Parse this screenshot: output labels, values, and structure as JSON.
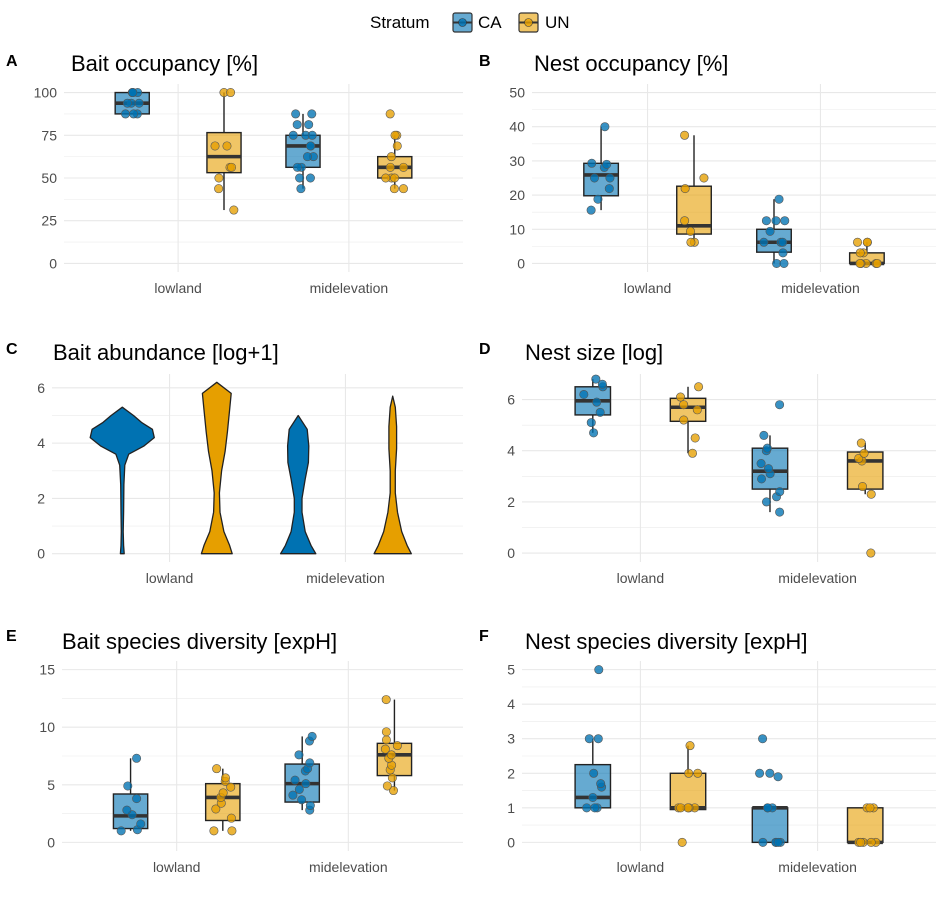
{
  "legend": {
    "title": "Stratum",
    "items": [
      {
        "label": "CA",
        "color": "#0072B2"
      },
      {
        "label": "UN",
        "color": "#E69F00"
      }
    ]
  },
  "chart_data": [
    {
      "panel": "A",
      "type": "box",
      "title": "Bait occupancy [%]",
      "categories": [
        "lowland",
        "midelevation"
      ],
      "ylim": [
        -5,
        105
      ],
      "yticks": [
        0,
        25,
        50,
        75,
        100
      ],
      "series": [
        {
          "name": "CA",
          "boxes": [
            {
              "min": 87.5,
              "q1": 87.5,
              "median": 93.75,
              "q3": 100,
              "max": 100,
              "points": [
                87.5,
                87.5,
                87.5,
                93.75,
                93.75,
                93.75,
                100,
                100,
                100,
                100
              ]
            },
            {
              "min": 43.75,
              "q1": 56.25,
              "median": 68.75,
              "q3": 75,
              "max": 87.5,
              "points": [
                43.75,
                50,
                50,
                56.25,
                56.25,
                62.5,
                62.5,
                68.75,
                68.75,
                75,
                75,
                75,
                81.25,
                81.25,
                87.5,
                87.5
              ]
            }
          ]
        },
        {
          "name": "UN",
          "boxes": [
            {
              "min": 31.25,
              "q1": 53.12,
              "median": 62.5,
              "q3": 76.56,
              "max": 100,
              "points": [
                31.25,
                43.75,
                50,
                56.25,
                56.25,
                68.75,
                68.75,
                100,
                100
              ]
            },
            {
              "min": 43.75,
              "q1": 50,
              "median": 56.25,
              "q3": 62.5,
              "max": 75,
              "points": [
                43.75,
                43.75,
                50,
                50,
                50,
                56.25,
                56.25,
                62.5,
                68.75,
                75,
                75,
                87.5
              ]
            }
          ]
        }
      ]
    },
    {
      "panel": "B",
      "type": "box",
      "title": "Nest occupancy [%]",
      "categories": [
        "lowland",
        "midelevation"
      ],
      "ylim": [
        -2.5,
        52.5
      ],
      "yticks": [
        0,
        10,
        20,
        30,
        40,
        50
      ],
      "series": [
        {
          "name": "CA",
          "boxes": [
            {
              "min": 15.6,
              "q1": 19.8,
              "median": 25.9,
              "q3": 29.3,
              "max": 40,
              "points": [
                15.6,
                18.8,
                21.9,
                25,
                25,
                28.1,
                29,
                29.3,
                40
              ]
            },
            {
              "min": 0,
              "q1": 3.3,
              "median": 6.2,
              "q3": 10,
              "max": 18.8,
              "points": [
                0,
                0,
                3.1,
                6.2,
                6.2,
                6.2,
                9.4,
                12.5,
                12.5,
                12.5,
                18.8
              ]
            }
          ]
        },
        {
          "name": "UN",
          "boxes": [
            {
              "min": 6.2,
              "q1": 8.6,
              "median": 11,
              "q3": 22.6,
              "max": 37.5,
              "points": [
                6.2,
                6.2,
                9.4,
                12.5,
                21.9,
                25,
                37.5
              ]
            },
            {
              "min": 0,
              "q1": 0,
              "median": 0,
              "q3": 3.1,
              "max": 6.2,
              "points": [
                0,
                0,
                0,
                0,
                0,
                3.1,
                3.1,
                6.2,
                6.2,
                6.2
              ]
            }
          ]
        }
      ]
    },
    {
      "panel": "C",
      "type": "violin",
      "title": "Bait abundance [log+1]",
      "categories": [
        "lowland",
        "midelevation"
      ],
      "ylim": [
        -0.3,
        6.5
      ],
      "yticks": [
        0,
        2,
        4,
        6
      ],
      "series": [
        {
          "name": "CA",
          "violins": [
            {
              "profile": [
                [
                  0,
                  0.06
                ],
                [
                  0.3,
                  0.04
                ],
                [
                  0.8,
                  0.03
                ],
                [
                  1.5,
                  0.04
                ],
                [
                  2.5,
                  0.05
                ],
                [
                  3.2,
                  0.08
                ],
                [
                  3.6,
                  0.2
                ],
                [
                  3.9,
                  0.68
                ],
                [
                  4.2,
                  1.0
                ],
                [
                  4.5,
                  0.94
                ],
                [
                  4.75,
                  0.6
                ],
                [
                  5.0,
                  0.35
                ],
                [
                  5.3,
                  0
                ]
              ]
            },
            {
              "profile": [
                [
                  0,
                  0.55
                ],
                [
                  0.3,
                  0.4
                ],
                [
                  0.8,
                  0.22
                ],
                [
                  1.5,
                  0.12
                ],
                [
                  2.0,
                  0.12
                ],
                [
                  2.7,
                  0.22
                ],
                [
                  3.3,
                  0.32
                ],
                [
                  3.9,
                  0.33
                ],
                [
                  4.5,
                  0.28
                ],
                [
                  5.0,
                  0
                ]
              ]
            }
          ]
        },
        {
          "name": "UN",
          "violins": [
            {
              "profile": [
                [
                  0,
                  0.48
                ],
                [
                  0.3,
                  0.4
                ],
                [
                  0.8,
                  0.22
                ],
                [
                  1.5,
                  0.1
                ],
                [
                  2.2,
                  0.08
                ],
                [
                  3.0,
                  0.15
                ],
                [
                  3.7,
                  0.26
                ],
                [
                  4.4,
                  0.33
                ],
                [
                  5.2,
                  0.4
                ],
                [
                  5.8,
                  0.45
                ],
                [
                  6.2,
                  0
                ]
              ]
            },
            {
              "profile": [
                [
                  0,
                  0.58
                ],
                [
                  0.3,
                  0.45
                ],
                [
                  0.8,
                  0.28
                ],
                [
                  1.5,
                  0.15
                ],
                [
                  2.2,
                  0.08
                ],
                [
                  3.0,
                  0.08
                ],
                [
                  3.8,
                  0.12
                ],
                [
                  4.6,
                  0.12
                ],
                [
                  5.3,
                  0.08
                ],
                [
                  5.7,
                  0
                ]
              ]
            }
          ]
        }
      ]
    },
    {
      "panel": "D",
      "type": "box",
      "title": "Nest size [log]",
      "categories": [
        "lowland",
        "midelevation"
      ],
      "ylim": [
        -0.35,
        7.0
      ],
      "yticks": [
        0,
        2,
        4,
        6
      ],
      "series": [
        {
          "name": "CA",
          "boxes": [
            {
              "min": 4.7,
              "q1": 5.4,
              "median": 5.95,
              "q3": 6.5,
              "max": 6.8,
              "points": [
                4.7,
                5.1,
                5.5,
                5.9,
                6.2,
                6.5,
                6.6,
                6.8
              ]
            },
            {
              "min": 1.6,
              "q1": 2.5,
              "median": 3.2,
              "q3": 4.1,
              "max": 4.6,
              "points": [
                1.6,
                2.0,
                2.2,
                2.4,
                2.9,
                3.1,
                3.3,
                3.5,
                4.0,
                4.1,
                4.6,
                5.8
              ]
            }
          ]
        },
        {
          "name": "UN",
          "boxes": [
            {
              "min": 3.9,
              "q1": 5.15,
              "median": 5.7,
              "q3": 6.05,
              "max": 6.5,
              "points": [
                3.9,
                4.5,
                5.2,
                5.6,
                5.8,
                6.1,
                6.5
              ]
            },
            {
              "min": 2.3,
              "q1": 2.5,
              "median": 3.6,
              "q3": 3.95,
              "max": 4.3,
              "points": [
                0,
                2.3,
                2.6,
                3.6,
                3.7,
                3.9,
                4.3
              ]
            }
          ]
        }
      ]
    },
    {
      "panel": "E",
      "type": "box",
      "title": "Bait species diversity [expH]",
      "categories": [
        "lowland",
        "midelevation"
      ],
      "ylim": [
        -0.75,
        15.75
      ],
      "yticks": [
        0,
        5,
        10,
        15
      ],
      "series": [
        {
          "name": "CA",
          "boxes": [
            {
              "min": 1.0,
              "q1": 1.2,
              "median": 2.3,
              "q3": 4.2,
              "max": 7.3,
              "points": [
                1.0,
                1.1,
                1.6,
                2.4,
                2.8,
                3.8,
                4.9,
                7.3
              ]
            },
            {
              "min": 2.8,
              "q1": 3.5,
              "median": 5.1,
              "q3": 6.8,
              "max": 9.2,
              "points": [
                2.8,
                3.2,
                3.7,
                4.1,
                4.6,
                5.1,
                5.4,
                6.2,
                6.4,
                6.9,
                7.6,
                8.8,
                9.2
              ]
            }
          ]
        },
        {
          "name": "UN",
          "boxes": [
            {
              "min": 1.0,
              "q1": 1.9,
              "median": 3.9,
              "q3": 5.1,
              "max": 6.4,
              "points": [
                1.0,
                1.0,
                2.1,
                2.9,
                3.4,
                3.9,
                4.3,
                4.8,
                5.3,
                5.6,
                6.4
              ]
            },
            {
              "min": 4.5,
              "q1": 5.8,
              "median": 7.6,
              "q3": 8.6,
              "max": 12.4,
              "points": [
                4.5,
                4.9,
                5.6,
                6.3,
                6.7,
                7.3,
                7.6,
                8.1,
                8.4,
                8.9,
                9.6,
                12.4
              ]
            }
          ]
        }
      ]
    },
    {
      "panel": "F",
      "type": "box",
      "title": "Nest species diversity [expH]",
      "categories": [
        "lowland",
        "midelevation"
      ],
      "ylim": [
        -0.25,
        5.25
      ],
      "yticks": [
        0,
        1,
        2,
        3,
        4,
        5
      ],
      "series": [
        {
          "name": "CA",
          "boxes": [
            {
              "min": 1.0,
              "q1": 1.0,
              "median": 1.3,
              "q3": 2.25,
              "max": 3.0,
              "points": [
                1.0,
                1.0,
                1.0,
                1.3,
                1.6,
                1.7,
                2.0,
                3.0,
                3.0,
                5.0
              ]
            },
            {
              "min": 0,
              "q1": 0,
              "median": 1.0,
              "q3": 1.0,
              "max": 1.0,
              "points": [
                0,
                0,
                0,
                0,
                0,
                1.0,
                1.0,
                1.0,
                1.9,
                2.0,
                2.0,
                3.0
              ]
            }
          ]
        },
        {
          "name": "UN",
          "boxes": [
            {
              "min": 0.9,
              "q1": 0.95,
              "median": 1.0,
              "q3": 2.0,
              "max": 2.8,
              "points": [
                0,
                1.0,
                1.0,
                1.0,
                1.0,
                1.0,
                2.0,
                2.0,
                2.8
              ]
            },
            {
              "min": 0,
              "q1": 0,
              "median": 0,
              "q3": 1.0,
              "max": 1.0,
              "points": [
                0,
                0,
                0,
                0,
                0,
                1.0,
                1.0,
                1.0
              ]
            }
          ]
        }
      ]
    }
  ]
}
